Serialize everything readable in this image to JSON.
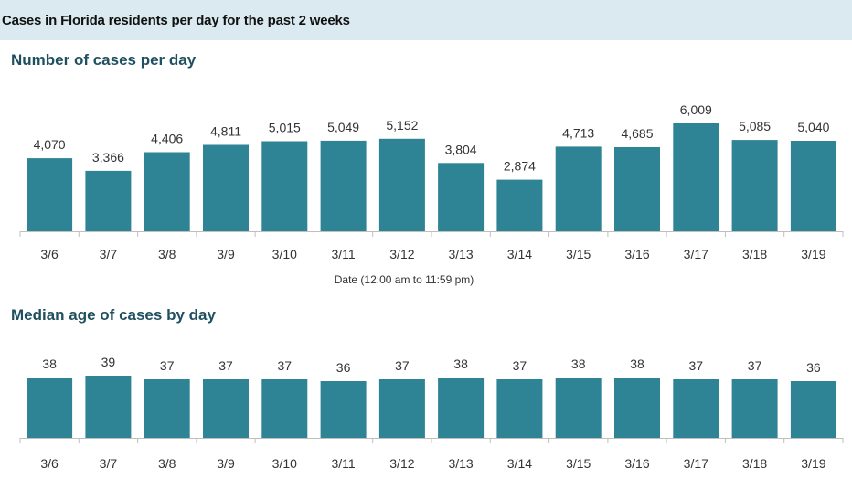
{
  "header": {
    "title": "Cases in Florida residents per day for the past 2 weeks"
  },
  "colors": {
    "bar": "#2e8494",
    "axis": "#bfbfbf",
    "header_bg": "#dbeaf0",
    "section_title": "#1f5060"
  },
  "chart_data": [
    {
      "type": "bar",
      "title": "Number of cases per day",
      "xlabel": "Date (12:00 am to 11:59 pm)",
      "ylabel": "",
      "categories": [
        "3/6",
        "3/7",
        "3/8",
        "3/9",
        "3/10",
        "3/11",
        "3/12",
        "3/13",
        "3/14",
        "3/15",
        "3/16",
        "3/17",
        "3/18",
        "3/19"
      ],
      "values": [
        4070,
        3366,
        4406,
        4811,
        5015,
        5049,
        5152,
        3804,
        2874,
        4713,
        4685,
        6009,
        5085,
        5040
      ],
      "value_labels": [
        "4,070",
        "3,366",
        "4,406",
        "4,811",
        "5,015",
        "5,049",
        "5,152",
        "3,804",
        "2,874",
        "4,713",
        "4,685",
        "6,009",
        "5,085",
        "5,040"
      ],
      "grid": false
    },
    {
      "type": "bar",
      "title": "Median age of cases by day",
      "xlabel": "",
      "ylabel": "",
      "categories": [
        "3/6",
        "3/7",
        "3/8",
        "3/9",
        "3/10",
        "3/11",
        "3/12",
        "3/13",
        "3/14",
        "3/15",
        "3/16",
        "3/17",
        "3/18",
        "3/19"
      ],
      "values": [
        38,
        39,
        37,
        37,
        37,
        36,
        37,
        38,
        37,
        38,
        38,
        37,
        37,
        36
      ],
      "value_labels": [
        "38",
        "39",
        "37",
        "37",
        "37",
        "36",
        "37",
        "38",
        "37",
        "38",
        "38",
        "37",
        "37",
        "36"
      ],
      "grid": false
    }
  ]
}
